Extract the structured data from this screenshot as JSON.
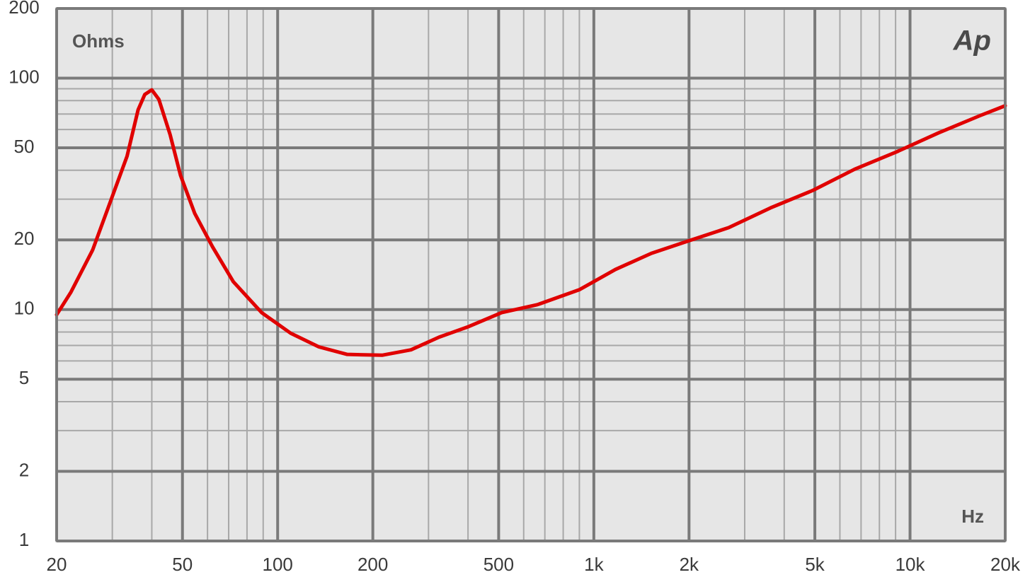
{
  "chart_data": {
    "type": "line",
    "y_unit_label": "Ohms",
    "x_unit_label": "Hz",
    "logo": "Ap",
    "x_log": true,
    "y_log": true,
    "grid": true,
    "xlim": [
      20,
      20000
    ],
    "ylim": [
      1,
      200
    ],
    "xticks": [
      20,
      50,
      100,
      200,
      500,
      {
        "value": 1000,
        "label": "1k"
      },
      {
        "value": 2000,
        "label": "2k"
      },
      {
        "value": 5000,
        "label": "5k"
      },
      {
        "value": 10000,
        "label": "10k"
      },
      {
        "value": 20000,
        "label": "20k"
      }
    ],
    "yticks": [
      1,
      2,
      5,
      10,
      20,
      50,
      100,
      200
    ],
    "x": [
      20,
      22.2,
      26,
      30.2,
      33.4,
      36.2,
      38,
      40,
      42.1,
      45.7,
      49.3,
      54.7,
      62.2,
      72.4,
      89,
      110,
      135,
      166,
      214,
      264,
      324,
      398,
      511,
      663,
      902,
      1170,
      1520,
      1970,
      2670,
      3620,
      4920,
      6680,
      9060,
      12300,
      16700,
      20000
    ],
    "series": [
      {
        "color": "#e00000",
        "values": [
          9.5,
          11.9,
          18.1,
          31.6,
          46,
          73,
          85,
          89,
          81,
          57,
          38,
          26,
          18.7,
          13.2,
          9.7,
          7.9,
          6.9,
          6.4,
          6.35,
          6.7,
          7.6,
          8.4,
          9.7,
          10.5,
          12.2,
          14.9,
          17.5,
          19.7,
          22.6,
          27.5,
          32.7,
          40.4,
          48,
          58,
          69,
          76
        ]
      }
    ]
  }
}
